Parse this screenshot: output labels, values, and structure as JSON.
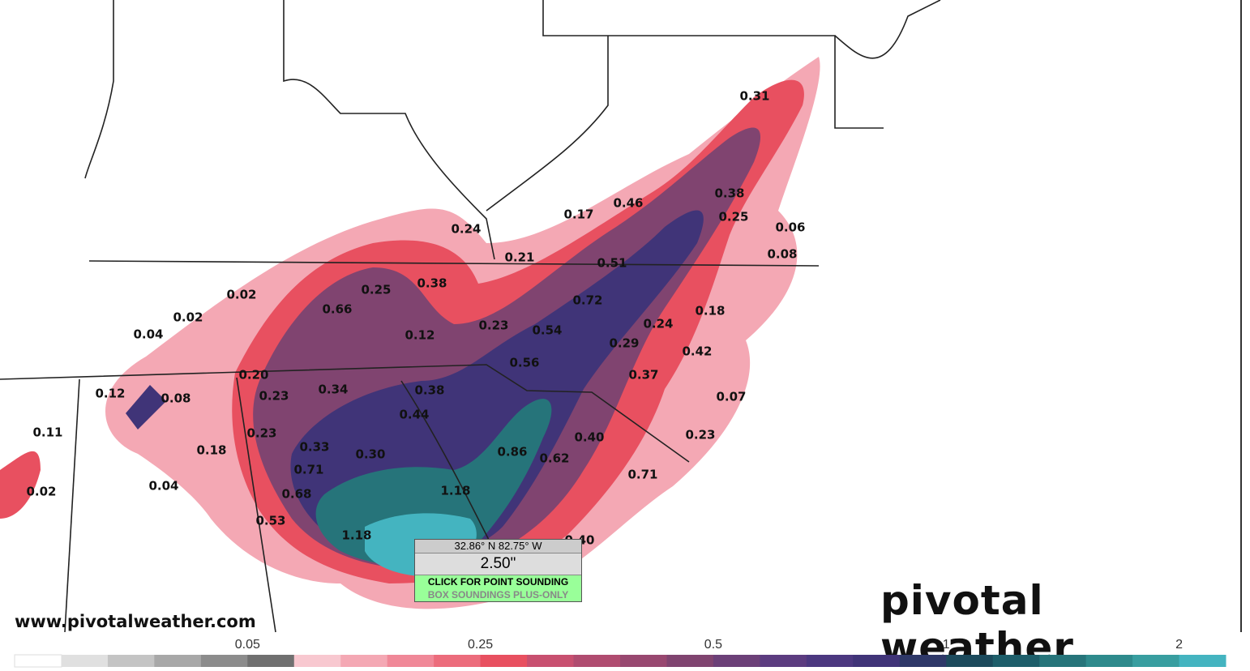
{
  "map": {
    "labels": [
      "0.31",
      "0.38",
      "0.25",
      "0.06",
      "0.08",
      "0.17",
      "0.46",
      "0.24",
      "0.21",
      "0.51",
      "0.02",
      "0.25",
      "0.38",
      "0.66",
      "0.72",
      "0.18",
      "0.02",
      "0.04",
      "0.12",
      "0.23",
      "0.54",
      "0.24",
      "0.29",
      "0.42",
      "0.56",
      "0.20",
      "0.37",
      "0.12",
      "0.08",
      "0.23",
      "0.34",
      "0.38",
      "0.07",
      "0.44",
      "0.11",
      "0.23",
      "0.40",
      "0.23",
      "0.18",
      "0.33",
      "0.30",
      "0.86",
      "0.62",
      "0.71",
      "0.71",
      "0.04",
      "0.02",
      "0.68",
      "1.18",
      "0.53",
      "1.18",
      "0.40"
    ]
  },
  "tooltip": {
    "coords": "32.86° N 82.75° W",
    "value": "2.50\"",
    "action": "CLICK FOR POINT SOUNDING",
    "note": "BOX SOUNDINGS PLUS-ONLY"
  },
  "watermark": "www.pivotalweather.com",
  "logo": "pivotal weather",
  "colorbar": {
    "ticks": [
      "0.05",
      "0.25",
      "0.5",
      "1",
      "2"
    ],
    "colors": [
      "#ffffff",
      "#e0e0e0",
      "#c4c4c4",
      "#a8a8a8",
      "#8c8c8c",
      "#707070",
      "#f8c8d0",
      "#f4a8b4",
      "#f08898",
      "#ec6c7c",
      "#e85060",
      "#c85070",
      "#b04c70",
      "#984870",
      "#804470",
      "#6c4078",
      "#5c3c80",
      "#4c3880",
      "#403478",
      "#2e3868",
      "#1c4a5c",
      "#1e5e6a",
      "#26747a",
      "#2e8a8c",
      "#389ea0",
      "#44b4c0"
    ]
  }
}
